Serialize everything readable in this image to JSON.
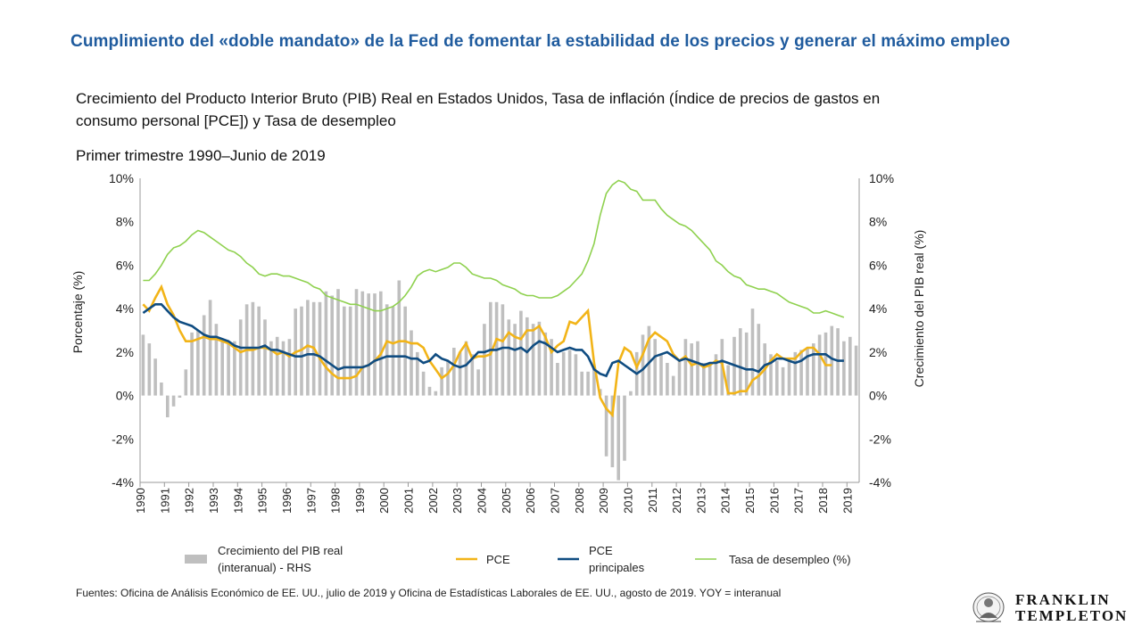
{
  "title": "Cumplimiento del «doble mandato» de la Fed de fomentar la estabilidad de los precios y generar el máximo empleo",
  "subtitle": "Crecimiento del Producto Interior Bruto (PIB) Real en Estados Unidos, Tasa de inflación (Índice de precios de gastos en consumo personal [PCE]) y Tasa de desempleo",
  "period": "Primer trimestre 1990–Junio de 2019",
  "sources": "Fuentes: Oficina de Análisis Económico de EE. UU., julio de 2019 y Oficina de Estadísticas Laborales de EE. UU., agosto de 2019. YOY = interanual",
  "logo": {
    "line1": "FRANKLIN",
    "line2": "TEMPLETON"
  },
  "colors": {
    "gdp": "#bfbfbf",
    "pce": "#f2b418",
    "core": "#0f4c81",
    "unemployment": "#8fd14f",
    "title": "#1f5b9e"
  },
  "legend": {
    "gdp_line1": "Crecimiento del PIB real",
    "gdp_line2": "(interanual) - RHS",
    "pce": "PCE",
    "core_line1": "PCE",
    "core_line2": "principales",
    "unemployment": "Tasa de desempleo (%)"
  },
  "chart_data": {
    "type": "bar+line",
    "ylabel": "Porcentaje (%)",
    "y2label": "Crecimiento del PIB real (%)",
    "ylim": [
      -4,
      10
    ],
    "y2lim": [
      -4,
      10
    ],
    "yticks": [
      "10%",
      "8%",
      "6%",
      "4%",
      "2%",
      "0%",
      "-2%",
      "-4%"
    ],
    "y2ticks": [
      "10%",
      "8%",
      "6%",
      "4%",
      "2%",
      "0%",
      "-2%",
      "-4%"
    ],
    "x_range": [
      1990.0,
      2019.5
    ],
    "xticks": [
      "1990",
      "1991",
      "1992",
      "1993",
      "1994",
      "1995",
      "1996",
      "1997",
      "1998",
      "1999",
      "2000",
      "2001",
      "2002",
      "2003",
      "2004",
      "2005",
      "2006",
      "2007",
      "2008",
      "2009",
      "2010",
      "2011",
      "2012",
      "2013",
      "2014",
      "2015",
      "2016",
      "2017",
      "2018",
      "2019"
    ],
    "grid": false,
    "legend_position": "bottom",
    "series": [
      {
        "name": "Crecimiento del PIB real (interanual) - RHS",
        "type": "bar",
        "axis": "right",
        "frequency": "quarterly",
        "start": 1990.0,
        "values": [
          2.8,
          2.4,
          1.7,
          0.6,
          -1.0,
          -0.5,
          -0.1,
          1.2,
          2.9,
          3.0,
          3.7,
          4.4,
          3.3,
          2.6,
          2.4,
          2.5,
          3.5,
          4.2,
          4.3,
          4.1,
          3.5,
          2.5,
          2.7,
          2.5,
          2.6,
          4.0,
          4.1,
          4.4,
          4.3,
          4.3,
          4.8,
          4.6,
          4.9,
          4.1,
          4.1,
          4.9,
          4.8,
          4.7,
          4.7,
          4.8,
          4.2,
          4.1,
          5.3,
          4.1,
          3.0,
          2.0,
          1.1,
          0.4,
          0.2,
          1.3,
          1.6,
          2.2,
          2.0,
          2.5,
          1.9,
          1.2,
          3.3,
          4.3,
          4.3,
          4.2,
          3.5,
          3.3,
          3.9,
          3.6,
          3.3,
          3.4,
          2.9,
          2.6,
          1.5,
          2.0,
          2.1,
          1.9,
          1.1,
          1.1,
          1.3,
          0.3,
          -2.8,
          -3.3,
          -3.9,
          -3.0,
          0.2,
          2.0,
          2.8,
          3.2,
          2.6,
          1.9,
          1.5,
          0.9,
          1.6,
          2.6,
          2.4,
          2.5,
          1.5,
          1.4,
          1.9,
          2.6,
          1.4,
          2.7,
          3.1,
          2.9,
          4.0,
          3.3,
          2.4,
          1.9,
          1.6,
          1.3,
          1.7,
          2.0,
          2.1,
          2.2,
          2.4,
          2.8,
          2.9,
          3.2,
          3.1,
          2.5,
          2.7,
          2.3
        ]
      },
      {
        "name": "PCE",
        "type": "line",
        "axis": "left",
        "frequency": "quarterly",
        "start": 1990.0,
        "values": [
          4.2,
          3.9,
          4.5,
          5.0,
          4.2,
          3.7,
          3.0,
          2.5,
          2.5,
          2.6,
          2.7,
          2.6,
          2.6,
          2.5,
          2.4,
          2.2,
          2.0,
          2.1,
          2.1,
          2.2,
          2.2,
          2.1,
          1.9,
          2.0,
          1.8,
          2.0,
          2.1,
          2.3,
          2.2,
          1.7,
          1.3,
          1.0,
          0.8,
          0.8,
          0.8,
          0.9,
          1.3,
          1.4,
          1.6,
          1.9,
          2.5,
          2.4,
          2.5,
          2.5,
          2.4,
          2.4,
          2.2,
          1.6,
          1.2,
          0.8,
          1.0,
          1.4,
          2.0,
          2.4,
          1.7,
          1.8,
          1.8,
          1.9,
          2.6,
          2.5,
          2.9,
          2.7,
          2.6,
          3.0,
          3.0,
          3.2,
          2.7,
          2.0,
          2.3,
          2.5,
          3.4,
          3.3,
          3.6,
          3.9,
          1.5,
          -0.1,
          -0.6,
          -0.9,
          1.5,
          2.2,
          2.0,
          1.3,
          1.9,
          2.6,
          2.9,
          2.7,
          2.5,
          1.9,
          1.6,
          1.8,
          1.4,
          1.5,
          1.3,
          1.4,
          1.6,
          1.5,
          0.1,
          0.1,
          0.2,
          0.2,
          0.7,
          0.9,
          1.2,
          1.6,
          1.9,
          1.7,
          1.7,
          1.7,
          2.0,
          2.2,
          2.2,
          1.9,
          1.4,
          1.4
        ]
      },
      {
        "name": "PCE principales",
        "type": "line",
        "axis": "left",
        "frequency": "quarterly",
        "start": 1990.0,
        "values": [
          3.8,
          4.0,
          4.2,
          4.2,
          3.9,
          3.6,
          3.4,
          3.3,
          3.2,
          3.0,
          2.8,
          2.7,
          2.7,
          2.6,
          2.5,
          2.3,
          2.2,
          2.2,
          2.2,
          2.2,
          2.3,
          2.1,
          2.1,
          2.0,
          1.9,
          1.8,
          1.8,
          1.9,
          1.9,
          1.8,
          1.6,
          1.4,
          1.2,
          1.3,
          1.3,
          1.3,
          1.3,
          1.4,
          1.6,
          1.7,
          1.8,
          1.8,
          1.8,
          1.8,
          1.7,
          1.7,
          1.5,
          1.6,
          1.9,
          1.7,
          1.6,
          1.4,
          1.3,
          1.4,
          1.7,
          2.0,
          2.0,
          2.1,
          2.1,
          2.2,
          2.2,
          2.1,
          2.2,
          2.0,
          2.3,
          2.5,
          2.4,
          2.2,
          2.0,
          2.1,
          2.2,
          2.1,
          2.1,
          1.8,
          1.2,
          1.0,
          0.9,
          1.5,
          1.6,
          1.4,
          1.2,
          1.0,
          1.2,
          1.5,
          1.8,
          1.9,
          2.0,
          1.8,
          1.6,
          1.7,
          1.6,
          1.5,
          1.4,
          1.5,
          1.5,
          1.6,
          1.5,
          1.4,
          1.3,
          1.2,
          1.2,
          1.1,
          1.4,
          1.5,
          1.7,
          1.7,
          1.6,
          1.5,
          1.6,
          1.8,
          1.9,
          1.9,
          1.9,
          1.7,
          1.6,
          1.6
        ]
      },
      {
        "name": "Tasa de desempleo (%)",
        "type": "line",
        "axis": "left",
        "frequency": "quarterly",
        "start": 1990.0,
        "values": [
          5.3,
          5.3,
          5.6,
          6.0,
          6.5,
          6.8,
          6.9,
          7.1,
          7.4,
          7.6,
          7.5,
          7.3,
          7.1,
          6.9,
          6.7,
          6.6,
          6.4,
          6.1,
          5.9,
          5.6,
          5.5,
          5.6,
          5.6,
          5.5,
          5.5,
          5.4,
          5.3,
          5.2,
          5.0,
          4.9,
          4.6,
          4.5,
          4.4,
          4.3,
          4.2,
          4.2,
          4.1,
          4.0,
          3.9,
          3.9,
          4.0,
          4.1,
          4.3,
          4.6,
          5.0,
          5.5,
          5.7,
          5.8,
          5.7,
          5.8,
          5.9,
          6.1,
          6.1,
          5.9,
          5.6,
          5.5,
          5.4,
          5.4,
          5.3,
          5.1,
          5.0,
          4.9,
          4.7,
          4.6,
          4.6,
          4.5,
          4.5,
          4.5,
          4.6,
          4.8,
          5.0,
          5.3,
          5.6,
          6.2,
          7.0,
          8.3,
          9.3,
          9.7,
          9.9,
          9.8,
          9.5,
          9.4,
          9.0,
          9.0,
          9.0,
          8.6,
          8.3,
          8.1,
          7.9,
          7.8,
          7.6,
          7.3,
          7.0,
          6.7,
          6.2,
          6.0,
          5.7,
          5.5,
          5.4,
          5.1,
          5.0,
          4.9,
          4.9,
          4.8,
          4.7,
          4.5,
          4.3,
          4.2,
          4.1,
          4.0,
          3.8,
          3.8,
          3.9,
          3.8,
          3.7,
          3.6
        ]
      }
    ]
  }
}
